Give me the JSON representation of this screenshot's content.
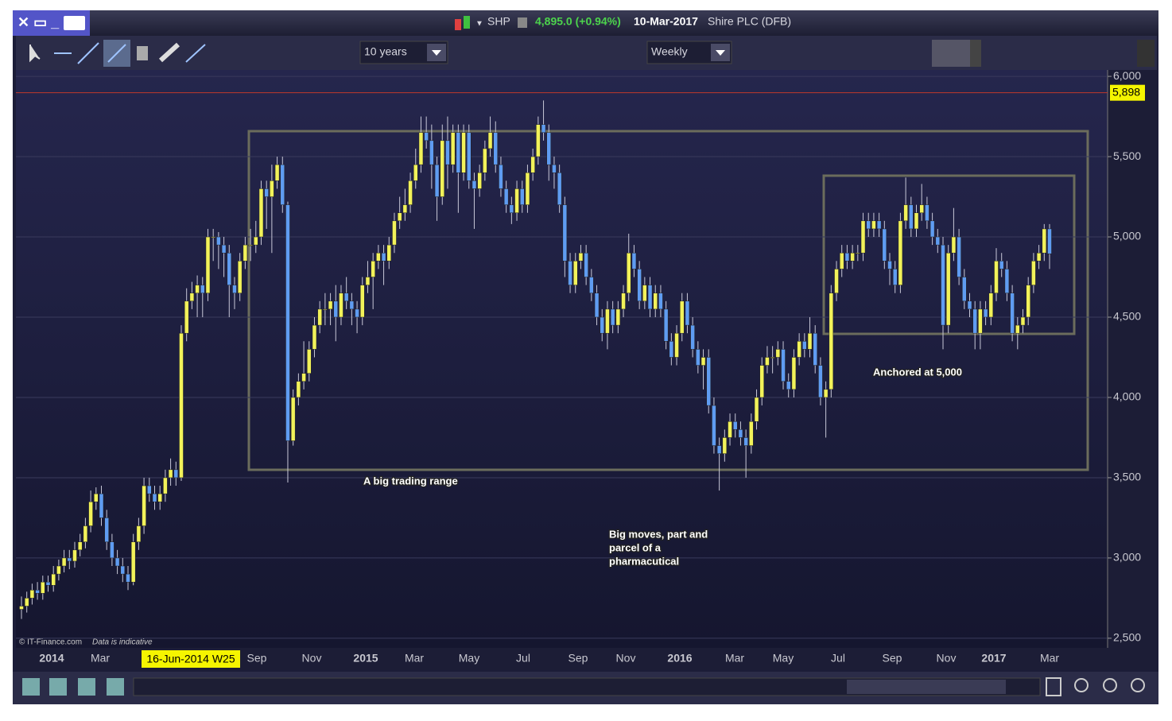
{
  "window": {
    "symbol": "SHP",
    "price": "4,895.0 (+0.94%)",
    "date": "10-Mar-2017",
    "name": "Shire PLC (DFB)"
  },
  "toolbar": {
    "period": "10 years",
    "interval": "Weekly"
  },
  "chart_data": {
    "type": "candlestick",
    "up_color": "#f2f25a",
    "down_color": "#5f9cf2",
    "grid": true,
    "ylim": [
      2440,
      6040
    ],
    "yticks": [
      {
        "value": 2500,
        "label": "2,500"
      },
      {
        "value": 3000,
        "label": "3,000"
      },
      {
        "value": 3500,
        "label": "3,500"
      },
      {
        "value": 4000,
        "label": "4,000"
      },
      {
        "value": 4500,
        "label": "4,500"
      },
      {
        "value": 5000,
        "label": "5,000"
      },
      {
        "value": 5500,
        "label": "5,500"
      },
      {
        "value": 6000,
        "label": "6,000"
      }
    ],
    "hline": {
      "value": 5898,
      "label": "5,898",
      "color": "#c0392b"
    },
    "x_labels": [
      "2014",
      "Mar",
      "Sep",
      "Nov",
      "2015",
      "Mar",
      "May",
      "Jul",
      "Sep",
      "Nov",
      "2016",
      "Mar",
      "May",
      "Jul",
      "Sep",
      "Nov",
      "2017",
      "Mar"
    ],
    "cursor_label": "16-Jun-2014 W25",
    "annotations": [
      "A  big trading range",
      "Anchored at 5,000",
      "Big moves, part and",
      "parcel of a",
      "pharmacutical"
    ],
    "credit": "© IT-Finance.com",
    "note": "Data is indicative",
    "ohlc": [
      [
        2680,
        2760,
        2620,
        2700
      ],
      [
        2700,
        2790,
        2660,
        2750
      ],
      [
        2750,
        2840,
        2710,
        2800
      ],
      [
        2800,
        2850,
        2740,
        2780
      ],
      [
        2780,
        2890,
        2740,
        2850
      ],
      [
        2850,
        2890,
        2790,
        2830
      ],
      [
        2830,
        2950,
        2790,
        2900
      ],
      [
        2900,
        2990,
        2860,
        2950
      ],
      [
        2950,
        3050,
        2910,
        3000
      ],
      [
        3000,
        3050,
        2930,
        2980
      ],
      [
        2980,
        3100,
        2940,
        3050
      ],
      [
        3050,
        3150,
        3010,
        3100
      ],
      [
        3100,
        3250,
        3060,
        3200
      ],
      [
        3200,
        3420,
        3160,
        3350
      ],
      [
        3350,
        3440,
        3300,
        3400
      ],
      [
        3400,
        3450,
        3200,
        3250
      ],
      [
        3250,
        3300,
        3050,
        3100
      ],
      [
        3100,
        3150,
        2950,
        3000
      ],
      [
        3000,
        3050,
        2900,
        2950
      ],
      [
        2950,
        3000,
        2850,
        2900
      ],
      [
        2900,
        2950,
        2800,
        2850
      ],
      [
        2850,
        3150,
        2830,
        3100
      ],
      [
        3100,
        3250,
        3050,
        3200
      ],
      [
        3200,
        3500,
        3150,
        3450
      ],
      [
        3450,
        3500,
        3350,
        3400
      ],
      [
        3400,
        3450,
        3300,
        3350
      ],
      [
        3350,
        3450,
        3300,
        3400
      ],
      [
        3400,
        3550,
        3350,
        3500
      ],
      [
        3500,
        3620,
        3450,
        3550
      ],
      [
        3550,
        3600,
        3450,
        3500
      ],
      [
        3500,
        4450,
        3480,
        4400
      ],
      [
        4400,
        4680,
        4350,
        4600
      ],
      [
        4600,
        4720,
        4550,
        4650
      ],
      [
        4650,
        4760,
        4500,
        4700
      ],
      [
        4700,
        4750,
        4500,
        4650
      ],
      [
        4650,
        5050,
        4600,
        5000
      ],
      [
        5000,
        5050,
        4850,
        5000
      ],
      [
        5000,
        5030,
        4800,
        4950
      ],
      [
        4950,
        5000,
        4750,
        4900
      ],
      [
        4900,
        4950,
        4500,
        4700
      ],
      [
        4700,
        4750,
        4550,
        4650
      ],
      [
        4650,
        4900,
        4600,
        4850
      ],
      [
        4850,
        5000,
        4800,
        4950
      ],
      [
        4950,
        5050,
        4850,
        4950
      ],
      [
        4950,
        5100,
        4900,
        5000
      ],
      [
        5000,
        5350,
        4950,
        5300
      ],
      [
        5300,
        5350,
        5050,
        5250
      ],
      [
        5250,
        5450,
        4900,
        5350
      ],
      [
        5350,
        5500,
        5300,
        5450
      ],
      [
        5450,
        5500,
        5150,
        5200
      ],
      [
        5200,
        5220,
        3470,
        3730
      ],
      [
        3730,
        4050,
        3700,
        4000
      ],
      [
        4000,
        4150,
        3950,
        4100
      ],
      [
        4100,
        4350,
        4050,
        4150
      ],
      [
        4150,
        4350,
        4100,
        4300
      ],
      [
        4300,
        4500,
        4250,
        4450
      ],
      [
        4450,
        4600,
        4400,
        4550
      ],
      [
        4550,
        4650,
        4450,
        4550
      ],
      [
        4550,
        4650,
        4450,
        4600
      ],
      [
        4600,
        4700,
        4350,
        4500
      ],
      [
        4500,
        4700,
        4450,
        4650
      ],
      [
        4650,
        4750,
        4550,
        4600
      ],
      [
        4600,
        4650,
        4450,
        4550
      ],
      [
        4550,
        4600,
        4400,
        4500
      ],
      [
        4500,
        4750,
        4450,
        4700
      ],
      [
        4700,
        4850,
        4650,
        4750
      ],
      [
        4750,
        4900,
        4550,
        4850
      ],
      [
        4850,
        4950,
        4800,
        4900
      ],
      [
        4900,
        4950,
        4700,
        4850
      ],
      [
        4850,
        5000,
        4800,
        4950
      ],
      [
        4950,
        5150,
        4900,
        5100
      ],
      [
        5100,
        5250,
        5050,
        5150
      ],
      [
        5150,
        5300,
        5100,
        5200
      ],
      [
        5200,
        5400,
        5150,
        5350
      ],
      [
        5350,
        5550,
        5300,
        5450
      ],
      [
        5450,
        5750,
        5400,
        5650
      ],
      [
        5650,
        5750,
        5550,
        5600
      ],
      [
        5600,
        5700,
        5300,
        5450
      ],
      [
        5450,
        5500,
        5100,
        5250
      ],
      [
        5250,
        5700,
        5200,
        5600
      ],
      [
        5600,
        5750,
        5300,
        5450
      ],
      [
        5450,
        5700,
        5400,
        5650
      ],
      [
        5650,
        5700,
        5150,
        5400
      ],
      [
        5400,
        5700,
        5350,
        5650
      ],
      [
        5650,
        5700,
        5300,
        5350
      ],
      [
        5350,
        5400,
        5050,
        5300
      ],
      [
        5300,
        5450,
        5250,
        5400
      ],
      [
        5400,
        5600,
        5350,
        5550
      ],
      [
        5550,
        5750,
        5500,
        5650
      ],
      [
        5650,
        5720,
        5400,
        5450
      ],
      [
        5450,
        5500,
        5250,
        5300
      ],
      [
        5300,
        5350,
        5150,
        5200
      ],
      [
        5200,
        5250,
        5080,
        5150
      ],
      [
        5150,
        5350,
        5100,
        5300
      ],
      [
        5300,
        5350,
        5150,
        5200
      ],
      [
        5200,
        5450,
        5150,
        5400
      ],
      [
        5400,
        5550,
        5350,
        5500
      ],
      [
        5500,
        5750,
        5450,
        5700
      ],
      [
        5700,
        5850,
        5600,
        5650
      ],
      [
        5650,
        5700,
        5350,
        5450
      ],
      [
        5450,
        5500,
        5300,
        5400
      ],
      [
        5400,
        5450,
        5150,
        5200
      ],
      [
        5200,
        5250,
        4750,
        4850
      ],
      [
        4850,
        4900,
        4650,
        4700
      ],
      [
        4700,
        4900,
        4650,
        4850
      ],
      [
        4850,
        4950,
        4800,
        4900
      ],
      [
        4900,
        4950,
        4700,
        4750
      ],
      [
        4750,
        4800,
        4600,
        4650
      ],
      [
        4650,
        4700,
        4450,
        4500
      ],
      [
        4500,
        4550,
        4350,
        4400
      ],
      [
        4400,
        4600,
        4300,
        4550
      ],
      [
        4550,
        4600,
        4400,
        4450
      ],
      [
        4450,
        4600,
        4400,
        4550
      ],
      [
        4550,
        4700,
        4500,
        4650
      ],
      [
        4650,
        5020,
        4600,
        4900
      ],
      [
        4900,
        4950,
        4750,
        4800
      ],
      [
        4800,
        4850,
        4550,
        4600
      ],
      [
        4600,
        4750,
        4550,
        4700
      ],
      [
        4700,
        4750,
        4500,
        4550
      ],
      [
        4550,
        4700,
        4500,
        4650
      ],
      [
        4650,
        4700,
        4500,
        4550
      ],
      [
        4550,
        4600,
        4300,
        4350
      ],
      [
        4350,
        4400,
        4200,
        4250
      ],
      [
        4250,
        4450,
        4200,
        4400
      ],
      [
        4400,
        4650,
        4350,
        4600
      ],
      [
        4600,
        4650,
        4400,
        4450
      ],
      [
        4450,
        4500,
        4250,
        4300
      ],
      [
        4300,
        4350,
        4150,
        4200
      ],
      [
        4200,
        4300,
        4050,
        4250
      ],
      [
        4250,
        4300,
        3900,
        3950
      ],
      [
        3950,
        4000,
        3650,
        3700
      ],
      [
        3700,
        3750,
        3420,
        3650
      ],
      [
        3650,
        3800,
        3600,
        3750
      ],
      [
        3750,
        3900,
        3700,
        3850
      ],
      [
        3850,
        3900,
        3750,
        3800
      ],
      [
        3800,
        3850,
        3700,
        3750
      ],
      [
        3750,
        3800,
        3500,
        3700
      ],
      [
        3700,
        3900,
        3650,
        3850
      ],
      [
        3850,
        4050,
        3800,
        4000
      ],
      [
        4000,
        4250,
        3950,
        4200
      ],
      [
        4200,
        4320,
        4150,
        4250
      ],
      [
        4250,
        4320,
        4150,
        4250
      ],
      [
        4250,
        4350,
        4200,
        4300
      ],
      [
        4300,
        4350,
        4050,
        4100
      ],
      [
        4100,
        4150,
        4000,
        4050
      ],
      [
        4050,
        4300,
        4000,
        4250
      ],
      [
        4250,
        4400,
        4200,
        4350
      ],
      [
        4350,
        4400,
        4250,
        4300
      ],
      [
        4300,
        4500,
        4250,
        4400
      ],
      [
        4400,
        4450,
        4150,
        4200
      ],
      [
        4200,
        4250,
        3950,
        4000
      ],
      [
        4000,
        4100,
        3750,
        4050
      ],
      [
        4050,
        4700,
        4000,
        4650
      ],
      [
        4650,
        4850,
        4600,
        4800
      ],
      [
        4800,
        4950,
        4750,
        4900
      ],
      [
        4900,
        4950,
        4800,
        4850
      ],
      [
        4850,
        4950,
        4800,
        4900
      ],
      [
        4900,
        4950,
        4850,
        4900
      ],
      [
        4900,
        5150,
        4850,
        5100
      ],
      [
        5100,
        5150,
        5000,
        5050
      ],
      [
        5050,
        5150,
        5000,
        5100
      ],
      [
        5100,
        5150,
        5000,
        5050
      ],
      [
        5050,
        5100,
        4800,
        4850
      ],
      [
        4850,
        4900,
        4700,
        4800
      ],
      [
        4800,
        4850,
        4650,
        4700
      ],
      [
        4700,
        5150,
        4650,
        5100
      ],
      [
        5100,
        5370,
        5050,
        5200
      ],
      [
        5200,
        5250,
        5000,
        5050
      ],
      [
        5050,
        5200,
        5000,
        5150
      ],
      [
        5150,
        5330,
        5100,
        5200
      ],
      [
        5200,
        5250,
        5050,
        5100
      ],
      [
        5100,
        5150,
        4950,
        5000
      ],
      [
        5000,
        5050,
        4900,
        4950
      ],
      [
        4950,
        5000,
        4300,
        4450
      ],
      [
        4450,
        4950,
        4400,
        4900
      ],
      [
        4900,
        5180,
        4850,
        5000
      ],
      [
        5000,
        5050,
        4700,
        4750
      ],
      [
        4750,
        4800,
        4550,
        4600
      ],
      [
        4600,
        4650,
        4500,
        4550
      ],
      [
        4550,
        4600,
        4300,
        4400
      ],
      [
        4400,
        4600,
        4300,
        4550
      ],
      [
        4550,
        4600,
        4450,
        4500
      ],
      [
        4500,
        4700,
        4450,
        4650
      ],
      [
        4650,
        4930,
        4600,
        4850
      ],
      [
        4850,
        4900,
        4750,
        4800
      ],
      [
        4800,
        4850,
        4600,
        4650
      ],
      [
        4650,
        4700,
        4350,
        4400
      ],
      [
        4400,
        4500,
        4300,
        4450
      ],
      [
        4450,
        4550,
        4400,
        4500
      ],
      [
        4500,
        4750,
        4450,
        4700
      ],
      [
        4700,
        4900,
        4650,
        4850
      ],
      [
        4850,
        4950,
        4800,
        4900
      ],
      [
        4900,
        5080,
        4850,
        5050
      ],
      [
        5050,
        5080,
        4800,
        4895
      ]
    ]
  }
}
